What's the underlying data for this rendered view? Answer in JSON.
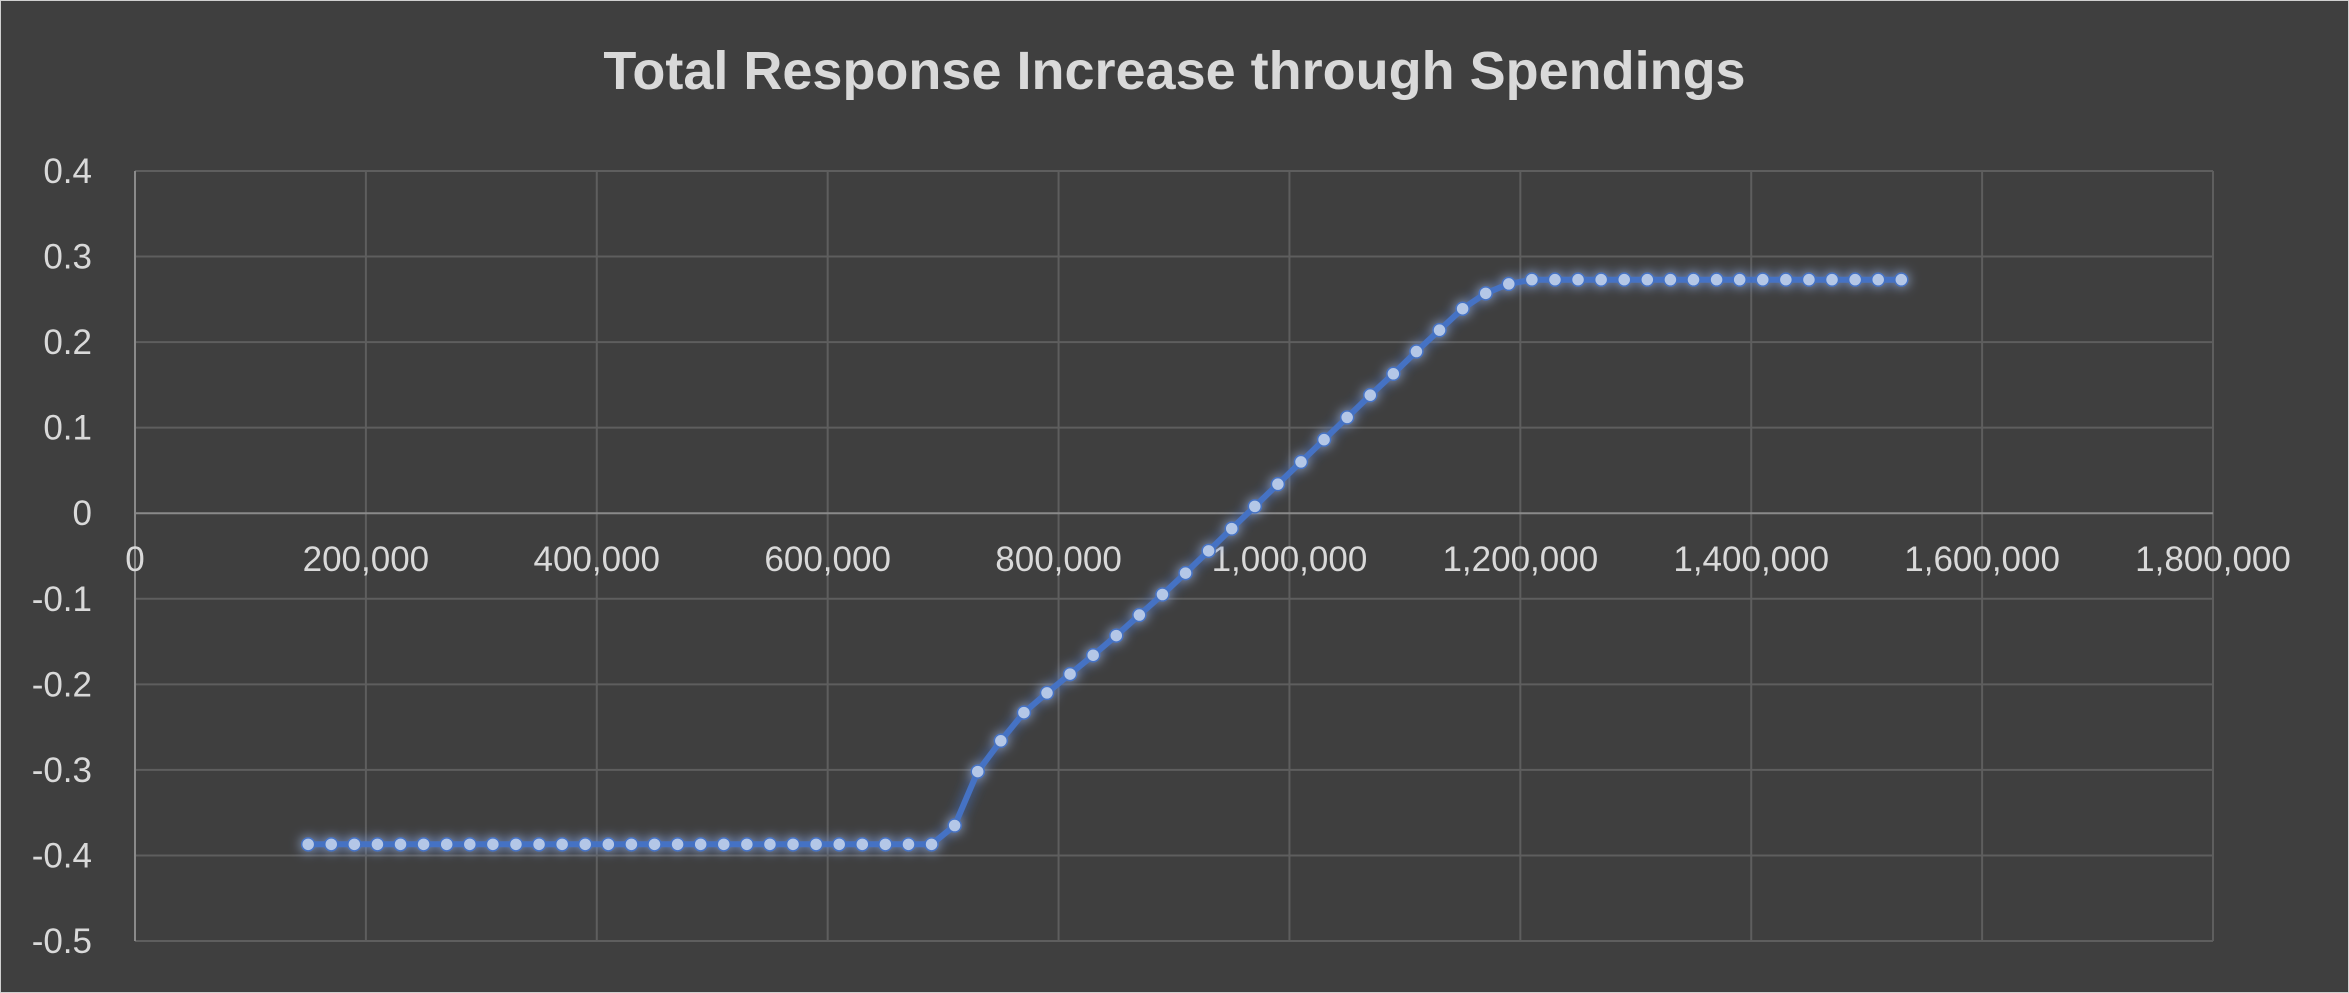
{
  "chart_data": {
    "type": "line",
    "title": "Total Response Increase through Spendings",
    "xlabel": "",
    "ylabel": "",
    "xlim": [
      0,
      1800000
    ],
    "ylim": [
      -0.5,
      0.4
    ],
    "x_ticks": [
      0,
      200000,
      400000,
      600000,
      800000,
      1000000,
      1200000,
      1400000,
      1600000,
      1800000
    ],
    "x_tick_labels": [
      "0",
      "200,000",
      "400,000",
      "600,000",
      "800,000",
      "1,000,000",
      "1,200,000",
      "1,400,000",
      "1,600,000",
      "1,800,000"
    ],
    "y_ticks": [
      0.4,
      0.3,
      0.2,
      0.1,
      0,
      -0.1,
      -0.2,
      -0.3,
      -0.4,
      -0.5
    ],
    "y_tick_labels": [
      "0.4",
      "0.3",
      "0.2",
      "0.1",
      "0",
      "-0.1",
      "-0.2",
      "-0.3",
      "-0.4",
      "-0.5"
    ],
    "grid": true,
    "legend": "none",
    "series_color": "#4472c4",
    "marker_color": "#b4c7e7",
    "series": [
      {
        "x": [
          150000,
          170000,
          190000,
          210000,
          230000,
          250000,
          270000,
          290000,
          310000,
          330000,
          350000,
          370000,
          390000,
          410000,
          430000,
          450000,
          470000,
          490000,
          510000,
          530000,
          550000,
          570000,
          590000,
          610000,
          630000,
          650000,
          670000,
          690000,
          710000,
          730000,
          750000,
          770000,
          790000,
          810000,
          830000,
          850000,
          870000,
          890000,
          910000,
          930000,
          950000,
          970000,
          990000,
          1010000,
          1030000,
          1050000,
          1070000,
          1090000,
          1110000,
          1130000,
          1150000,
          1170000,
          1190000,
          1210000,
          1230000,
          1250000,
          1270000,
          1290000,
          1310000,
          1330000,
          1350000,
          1370000,
          1390000,
          1410000,
          1430000,
          1450000,
          1470000,
          1490000,
          1510000,
          1530000
        ],
        "y": [
          -0.387,
          -0.387,
          -0.387,
          -0.387,
          -0.387,
          -0.387,
          -0.387,
          -0.387,
          -0.387,
          -0.387,
          -0.387,
          -0.387,
          -0.387,
          -0.387,
          -0.387,
          -0.387,
          -0.387,
          -0.387,
          -0.387,
          -0.387,
          -0.387,
          -0.387,
          -0.387,
          -0.387,
          -0.387,
          -0.387,
          -0.387,
          -0.387,
          -0.365,
          -0.302,
          -0.266,
          -0.233,
          -0.21,
          -0.188,
          -0.166,
          -0.143,
          -0.119,
          -0.095,
          -0.07,
          -0.044,
          -0.018,
          0.008,
          0.034,
          0.06,
          0.086,
          0.112,
          0.138,
          0.163,
          0.189,
          0.214,
          0.239,
          0.257,
          0.268,
          0.273,
          0.273,
          0.273,
          0.273,
          0.273,
          0.273,
          0.273,
          0.273,
          0.273,
          0.273,
          0.273,
          0.273,
          0.273,
          0.273,
          0.273,
          0.273,
          0.273
        ]
      }
    ]
  }
}
